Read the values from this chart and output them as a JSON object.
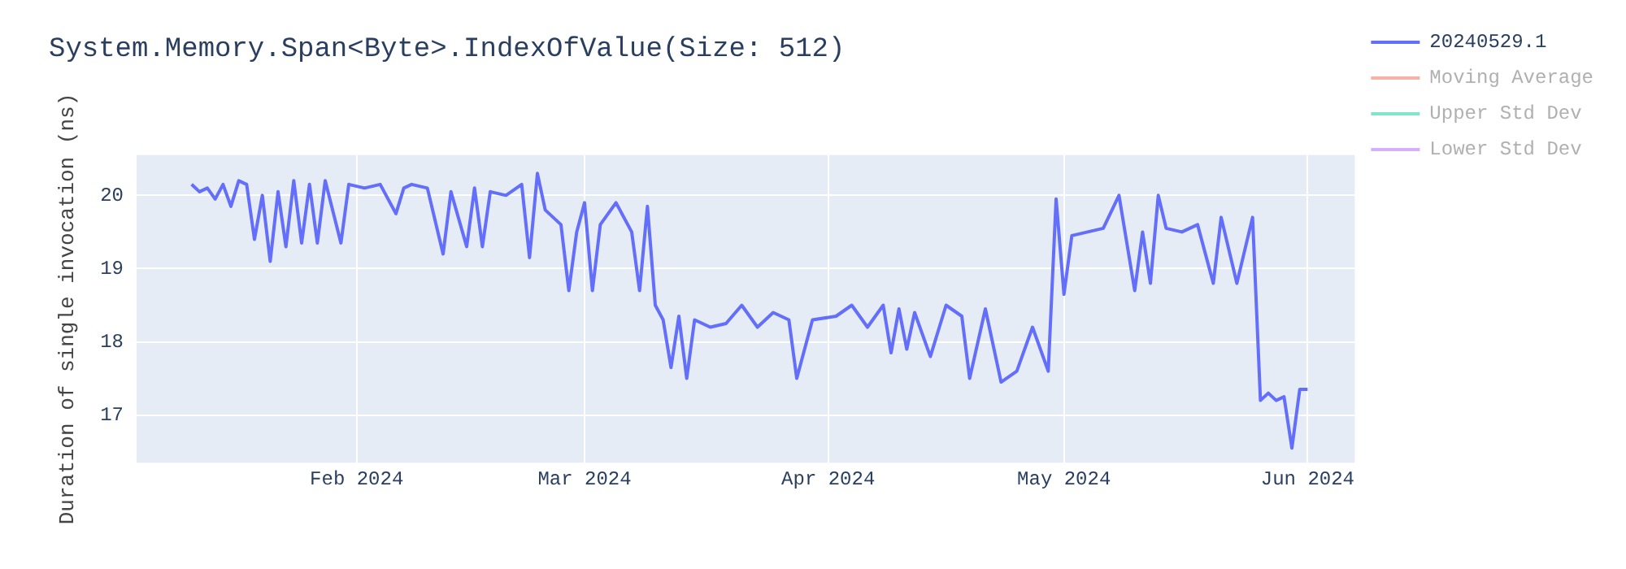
{
  "chart_data": {
    "type": "line",
    "title": "System.Memory.Span<Byte>.IndexOfValue(Size: 512)",
    "ylabel": "Duration of single invocation (ns)",
    "x": [
      "2024-01-11",
      "2024-01-12",
      "2024-01-13",
      "2024-01-14",
      "2024-01-15",
      "2024-01-16",
      "2024-01-17",
      "2024-01-18",
      "2024-01-19",
      "2024-01-20",
      "2024-01-21",
      "2024-01-22",
      "2024-01-23",
      "2024-01-24",
      "2024-01-25",
      "2024-01-26",
      "2024-01-27",
      "2024-01-28",
      "2024-01-30",
      "2024-01-31",
      "2024-02-02",
      "2024-02-04",
      "2024-02-06",
      "2024-02-07",
      "2024-02-08",
      "2024-02-10",
      "2024-02-12",
      "2024-02-13",
      "2024-02-15",
      "2024-02-16",
      "2024-02-17",
      "2024-02-18",
      "2024-02-20",
      "2024-02-22",
      "2024-02-23",
      "2024-02-24",
      "2024-02-25",
      "2024-02-27",
      "2024-02-28",
      "2024-02-29",
      "2024-03-01",
      "2024-03-02",
      "2024-03-03",
      "2024-03-05",
      "2024-03-07",
      "2024-03-08",
      "2024-03-09",
      "2024-03-10",
      "2024-03-11",
      "2024-03-12",
      "2024-03-13",
      "2024-03-14",
      "2024-03-15",
      "2024-03-17",
      "2024-03-19",
      "2024-03-21",
      "2024-03-23",
      "2024-03-25",
      "2024-03-27",
      "2024-03-28",
      "2024-03-30",
      "2024-04-02",
      "2024-04-04",
      "2024-04-06",
      "2024-04-08",
      "2024-04-09",
      "2024-04-10",
      "2024-04-11",
      "2024-04-12",
      "2024-04-14",
      "2024-04-16",
      "2024-04-18",
      "2024-04-19",
      "2024-04-21",
      "2024-04-23",
      "2024-04-25",
      "2024-04-27",
      "2024-04-29",
      "2024-04-30",
      "2024-05-01",
      "2024-05-02",
      "2024-05-04",
      "2024-05-06",
      "2024-05-08",
      "2024-05-10",
      "2024-05-11",
      "2024-05-12",
      "2024-05-13",
      "2024-05-14",
      "2024-05-16",
      "2024-05-18",
      "2024-05-20",
      "2024-05-21",
      "2024-05-23",
      "2024-05-25",
      "2024-05-26",
      "2024-05-27",
      "2024-05-28",
      "2024-05-29",
      "2024-05-30",
      "2024-05-31",
      "2024-06-01"
    ],
    "series": [
      {
        "name": "20240529.1",
        "color": "#636efa",
        "values": [
          20.15,
          20.05,
          20.1,
          19.95,
          20.15,
          19.85,
          20.2,
          20.15,
          19.4,
          20.0,
          19.1,
          20.05,
          19.3,
          20.2,
          19.35,
          20.15,
          19.35,
          20.2,
          19.35,
          20.15,
          20.1,
          20.15,
          19.75,
          20.1,
          20.15,
          20.1,
          19.2,
          20.05,
          19.3,
          20.1,
          19.3,
          20.05,
          20.0,
          20.15,
          19.15,
          20.3,
          19.8,
          19.6,
          18.7,
          19.5,
          19.9,
          18.7,
          19.6,
          19.9,
          19.5,
          18.7,
          19.85,
          18.5,
          18.3,
          17.65,
          18.35,
          17.5,
          18.3,
          18.2,
          18.25,
          18.5,
          18.2,
          18.4,
          18.3,
          17.5,
          18.3,
          18.35,
          18.5,
          18.2,
          18.5,
          17.85,
          18.45,
          17.9,
          18.4,
          17.8,
          18.5,
          18.35,
          17.5,
          18.45,
          17.45,
          17.6,
          18.2,
          17.6,
          19.95,
          18.65,
          19.45,
          19.5,
          19.55,
          20.0,
          18.7,
          19.5,
          18.8,
          20.0,
          19.55,
          19.5,
          19.6,
          18.8,
          19.7,
          18.8,
          19.7,
          17.2,
          17.3,
          17.2,
          17.25,
          16.55,
          17.35,
          17.35
        ]
      },
      {
        "name": "Moving Average",
        "color": "#f7b2a6",
        "values": [
          null,
          null,
          null,
          null,
          null,
          null,
          null,
          null,
          null,
          null,
          null,
          null,
          null,
          null,
          null,
          null,
          null,
          null,
          null,
          null,
          null,
          null,
          null,
          null,
          null,
          null,
          null,
          null,
          null,
          null,
          null,
          null,
          null,
          null,
          null,
          null,
          null,
          null,
          null,
          null,
          null,
          null,
          null,
          null,
          null,
          null,
          null,
          null,
          null,
          null,
          null,
          null,
          null,
          null,
          null,
          null,
          null,
          null,
          null,
          null,
          null,
          null,
          null,
          null,
          null,
          null,
          null,
          null,
          null,
          null,
          null,
          null,
          null,
          null,
          null,
          null,
          null,
          null,
          null,
          null,
          null,
          null,
          null,
          null,
          null,
          null,
          null,
          null,
          null,
          null,
          null,
          null,
          null,
          null,
          null,
          null,
          null,
          null,
          null,
          null,
          null,
          null
        ]
      },
      {
        "name": "Upper Std Dev",
        "color": "#80e6cb",
        "values": [
          null,
          null,
          null,
          null,
          null,
          null,
          null,
          null,
          null,
          null,
          null,
          null,
          null,
          null,
          null,
          null,
          null,
          null,
          null,
          null,
          null,
          null,
          null,
          null,
          null,
          null,
          null,
          null,
          null,
          null,
          null,
          null,
          null,
          null,
          null,
          null,
          null,
          null,
          null,
          null,
          null,
          null,
          null,
          null,
          null,
          null,
          null,
          null,
          null,
          null,
          null,
          null,
          null,
          null,
          null,
          null,
          null,
          null,
          null,
          null,
          null,
          null,
          null,
          null,
          null,
          null,
          null,
          null,
          null,
          null,
          null,
          null,
          null,
          null,
          null,
          null,
          null,
          null,
          null,
          null,
          null,
          null,
          null,
          null,
          null,
          null,
          null,
          null,
          null,
          null,
          null,
          null,
          null,
          null,
          null,
          null,
          null,
          null,
          null,
          null,
          null,
          null
        ]
      },
      {
        "name": "Lower Std Dev",
        "color": "#d5b1fd",
        "values": [
          null,
          null,
          null,
          null,
          null,
          null,
          null,
          null,
          null,
          null,
          null,
          null,
          null,
          null,
          null,
          null,
          null,
          null,
          null,
          null,
          null,
          null,
          null,
          null,
          null,
          null,
          null,
          null,
          null,
          null,
          null,
          null,
          null,
          null,
          null,
          null,
          null,
          null,
          null,
          null,
          null,
          null,
          null,
          null,
          null,
          null,
          null,
          null,
          null,
          null,
          null,
          null,
          null,
          null,
          null,
          null,
          null,
          null,
          null,
          null,
          null,
          null,
          null,
          null,
          null,
          null,
          null,
          null,
          null,
          null,
          null,
          null,
          null,
          null,
          null,
          null,
          null,
          null,
          null,
          null,
          null,
          null,
          null,
          null,
          null,
          null,
          null,
          null,
          null,
          null,
          null,
          null,
          null,
          null,
          null,
          null,
          null,
          null,
          null,
          null,
          null,
          null
        ]
      }
    ],
    "xlim": [
      "2024-01-04",
      "2024-06-07"
    ],
    "xticks": [
      {
        "value": "2024-02-01",
        "label": "Feb 2024"
      },
      {
        "value": "2024-03-01",
        "label": "Mar 2024"
      },
      {
        "value": "2024-04-01",
        "label": "Apr 2024"
      },
      {
        "value": "2024-05-01",
        "label": "May 2024"
      },
      {
        "value": "2024-06-01",
        "label": "Jun 2024"
      }
    ],
    "ylim": [
      16.35,
      20.55
    ],
    "yticks": [
      17,
      18,
      19,
      20
    ],
    "grid": true,
    "legend": "right",
    "marker": "none",
    "line_style": "solid"
  }
}
